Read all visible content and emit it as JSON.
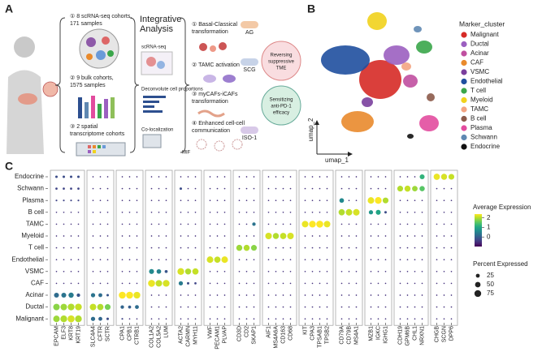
{
  "panel_labels": [
    "A",
    "B",
    "C"
  ],
  "panel_a": {
    "cohorts": [
      [
        "① 8 scRNA-seq cohorts,",
        "171 samples"
      ],
      [
        "② 9 bulk cohorts,",
        "1575 samples"
      ],
      [
        "③ 2 spatial",
        "transcriptome cohorts"
      ]
    ],
    "integrative_title": [
      "Integrative",
      "Analysis"
    ],
    "integrative_items": [
      "scRNA-seq",
      "Deconvolute cell proportions",
      "Co-localization"
    ],
    "findings": [
      [
        "① Basal-Classical",
        "transformation"
      ],
      [
        "② TAMC activation"
      ],
      [
        "③ myCAFs-iCAFs",
        "transformation"
      ],
      [
        "④ Enhanced cell-cell",
        "communication"
      ]
    ],
    "mif": "MIF",
    "drugs": [
      "AG",
      "SCG",
      "ISO-1"
    ],
    "outcomes": [
      [
        "Reversing",
        "suppressive",
        "TME"
      ],
      [
        "Sensitizing",
        "anti-PD-1",
        "efficacy"
      ]
    ]
  },
  "panel_b": {
    "legend_title": "Marker_cluster",
    "x_label": "umap_1",
    "y_label": "umap_2",
    "clusters": [
      {
        "name": "Malignant",
        "color": "#d62a26"
      },
      {
        "name": "Ductal",
        "color": "#9b5fc0"
      },
      {
        "name": "Acinar",
        "color": "#c04fa0"
      },
      {
        "name": "CAF",
        "color": "#e98a2c"
      },
      {
        "name": "VSMC",
        "color": "#7a3f9d"
      },
      {
        "name": "Endothelial",
        "color": "#1f4f9f"
      },
      {
        "name": "T cell",
        "color": "#3aa64a"
      },
      {
        "name": "Myeloid",
        "color": "#f1d21c"
      },
      {
        "name": "TAMC",
        "color": "#f3a482"
      },
      {
        "name": "B cell",
        "color": "#8c5a4a"
      },
      {
        "name": "Plasma",
        "color": "#e24c9e"
      },
      {
        "name": "Schwann",
        "color": "#5f88b2"
      },
      {
        "name": "Endocrine",
        "color": "#111111"
      }
    ]
  },
  "chart_data": {
    "type": "dotplot",
    "gene_groups": [
      [
        "EPCAM",
        "ELF3",
        "KRT8",
        "KRT19"
      ],
      [
        "SLC4A4",
        "CFTR",
        "SCTR"
      ],
      [
        "CPA1",
        "CPB1",
        "CTRB1"
      ],
      [
        "COL1A2",
        "COL5A2",
        "LUM"
      ],
      [
        "ACTA2",
        "CARMN",
        "MYH11"
      ],
      [
        "VWF",
        "PECAM1",
        "PLVAP"
      ],
      [
        "CD3D",
        "CD2",
        "SKAP1"
      ],
      [
        "AIF1",
        "MS4A6A",
        "CD163",
        "CD68"
      ],
      [
        "KIT",
        "CPA3",
        "TPSAB1",
        "TPSB2"
      ],
      [
        "CD79A",
        "CD79B",
        "MS4A1"
      ],
      [
        "MZB1",
        "IGKC",
        "IGHG1"
      ],
      [
        "CDH19",
        "GPM6B",
        "CHL1",
        "NRXN1"
      ],
      [
        "CHGB",
        "SCGN",
        "DPP6"
      ]
    ],
    "rows": [
      "Endocrine",
      "Schwann",
      "Plasma",
      "B cell",
      "TAMC",
      "Myeloid",
      "T cell",
      "Endothelial",
      "VSMC",
      "CAF",
      "Acinar",
      "Ductal",
      "Malignant"
    ],
    "expression": [
      [
        -0.2,
        -0.2,
        -0.2,
        -0.2,
        -0.5,
        -0.5,
        -0.5,
        -0.5,
        -0.5,
        -0.5,
        -0.5,
        -0.5,
        -0.5,
        -0.5,
        -0.5,
        -0.5,
        -0.5,
        -0.5,
        -0.5,
        -0.5,
        -0.5,
        -0.5,
        -0.5,
        -0.5,
        -0.5,
        -0.5,
        -0.5,
        -0.5,
        -0.5,
        -0.5,
        -0.5,
        -0.5,
        -0.5,
        -0.5,
        -0.5,
        -0.5,
        -0.5,
        -0.5,
        -0.5,
        1.2,
        2.3,
        2.2,
        2.1
      ],
      [
        -0.3,
        -0.3,
        -0.3,
        -0.3,
        -0.5,
        -0.5,
        -0.5,
        -0.5,
        -0.5,
        -0.5,
        -0.5,
        -0.5,
        -0.5,
        -0.2,
        -0.5,
        -0.5,
        -0.5,
        -0.5,
        -0.5,
        -0.5,
        -0.5,
        -0.5,
        -0.5,
        -0.5,
        -0.5,
        -0.5,
        -0.5,
        -0.5,
        -0.5,
        -0.5,
        -0.5,
        -0.5,
        -0.5,
        -0.5,
        -0.5,
        -0.5,
        2.0,
        2.1,
        1.9,
        1.5,
        -0.5,
        -0.5,
        -0.5
      ],
      [
        -0.3,
        -0.3,
        -0.3,
        -0.3,
        -0.5,
        -0.5,
        -0.5,
        -0.5,
        -0.5,
        -0.5,
        -0.5,
        -0.5,
        -0.5,
        -0.5,
        -0.5,
        -0.5,
        -0.5,
        -0.5,
        -0.5,
        -0.5,
        -0.5,
        -0.5,
        -0.5,
        -0.5,
        -0.5,
        -0.5,
        -0.5,
        -0.5,
        -0.5,
        -0.5,
        0.6,
        -0.5,
        -0.5,
        2.3,
        2.4,
        2.0,
        -0.5,
        -0.5,
        -0.5,
        -0.5,
        -0.5,
        -0.5,
        -0.5
      ],
      [
        -0.5,
        -0.5,
        -0.5,
        -0.5,
        -0.5,
        -0.5,
        -0.5,
        -0.5,
        -0.5,
        -0.5,
        -0.5,
        -0.5,
        -0.5,
        -0.5,
        -0.5,
        -0.5,
        -0.5,
        -0.5,
        -0.5,
        -0.5,
        -0.5,
        -0.5,
        -0.5,
        -0.5,
        -0.5,
        -0.5,
        -0.5,
        -0.5,
        -0.5,
        -0.5,
        2.0,
        2.1,
        2.2,
        0.8,
        1.0,
        -0.2,
        -0.5,
        -0.5,
        -0.5,
        -0.5,
        -0.5,
        -0.5,
        -0.5
      ],
      [
        -0.5,
        -0.5,
        -0.5,
        -0.5,
        -0.5,
        -0.5,
        -0.5,
        -0.5,
        -0.5,
        -0.5,
        -0.5,
        -0.5,
        -0.5,
        -0.5,
        -0.5,
        -0.5,
        -0.5,
        -0.5,
        -0.5,
        -0.5,
        -0.5,
        0.3,
        -0.5,
        -0.5,
        -0.5,
        -0.5,
        2.3,
        2.4,
        2.4,
        2.3,
        -0.5,
        -0.5,
        -0.5,
        -0.5,
        -0.5,
        -0.5,
        -0.5,
        -0.5,
        -0.5,
        -0.5,
        -0.5,
        -0.5,
        -0.5
      ],
      [
        -0.5,
        -0.5,
        -0.5,
        -0.5,
        -0.5,
        -0.5,
        -0.5,
        -0.5,
        -0.5,
        -0.5,
        -0.5,
        -0.5,
        -0.5,
        -0.5,
        -0.5,
        -0.5,
        -0.5,
        -0.5,
        -0.5,
        -0.5,
        -0.5,
        -0.5,
        2.2,
        2.0,
        2.1,
        2.2,
        -0.5,
        -0.5,
        -0.5,
        -0.5,
        -0.5,
        -0.5,
        -0.5,
        -0.5,
        -0.5,
        -0.5,
        -0.5,
        -0.5,
        -0.5,
        -0.5,
        -0.5,
        -0.5,
        -0.5
      ],
      [
        -0.5,
        -0.5,
        -0.5,
        -0.5,
        -0.5,
        -0.5,
        -0.5,
        -0.5,
        -0.5,
        -0.5,
        -0.5,
        -0.5,
        -0.5,
        -0.5,
        -0.5,
        -0.5,
        -0.5,
        -0.5,
        -0.5,
        1.9,
        2.0,
        1.8,
        -0.5,
        -0.5,
        -0.5,
        -0.5,
        -0.5,
        -0.5,
        -0.5,
        -0.5,
        -0.5,
        -0.5,
        -0.5,
        -0.5,
        -0.5,
        -0.5,
        -0.5,
        -0.5,
        -0.5,
        -0.5,
        -0.5,
        -0.5,
        -0.5
      ],
      [
        -0.5,
        -0.5,
        -0.5,
        -0.5,
        -0.5,
        -0.5,
        -0.5,
        -0.5,
        -0.5,
        -0.5,
        -0.5,
        -0.5,
        -0.5,
        -0.5,
        -0.5,
        -0.5,
        2.2,
        2.1,
        2.3,
        -0.5,
        -0.5,
        -0.5,
        -0.5,
        -0.5,
        -0.5,
        -0.5,
        -0.5,
        -0.5,
        -0.5,
        -0.5,
        -0.5,
        -0.5,
        -0.5,
        -0.5,
        -0.5,
        -0.5,
        -0.5,
        -0.5,
        -0.5,
        -0.5,
        -0.5,
        -0.5,
        -0.5
      ],
      [
        -0.5,
        -0.5,
        -0.5,
        -0.5,
        -0.5,
        -0.5,
        -0.5,
        -0.5,
        -0.5,
        -0.5,
        0.6,
        0.5,
        -0.1,
        2.2,
        2.0,
        2.1,
        -0.5,
        -0.5,
        -0.5,
        -0.5,
        -0.5,
        -0.5,
        -0.5,
        -0.5,
        -0.5,
        -0.5,
        -0.5,
        -0.5,
        -0.5,
        -0.5,
        -0.5,
        -0.5,
        -0.5,
        -0.5,
        -0.5,
        -0.5,
        -0.5,
        -0.5,
        -0.5,
        -0.5,
        -0.5,
        -0.5,
        -0.5
      ],
      [
        -0.5,
        -0.5,
        -0.5,
        -0.5,
        -0.5,
        -0.5,
        -0.5,
        -0.5,
        -0.5,
        -0.5,
        2.3,
        2.1,
        2.2,
        0.4,
        -0.2,
        -0.3,
        -0.5,
        -0.5,
        -0.5,
        -0.5,
        -0.5,
        -0.5,
        -0.5,
        -0.5,
        -0.5,
        -0.5,
        -0.5,
        -0.5,
        -0.5,
        -0.5,
        -0.5,
        -0.5,
        -0.5,
        -0.5,
        -0.5,
        -0.5,
        -0.5,
        -0.5,
        -0.5,
        -0.5,
        -0.5,
        -0.5,
        -0.5
      ],
      [
        0.2,
        0.3,
        0.4,
        -0.1,
        0.3,
        0.2,
        -0.1,
        2.4,
        2.4,
        2.3,
        -0.5,
        -0.5,
        -0.5,
        -0.5,
        -0.5,
        -0.5,
        -0.5,
        -0.5,
        -0.5,
        -0.5,
        -0.5,
        -0.5,
        -0.5,
        -0.5,
        -0.5,
        -0.5,
        -0.5,
        -0.5,
        -0.5,
        -0.5,
        -0.5,
        -0.5,
        -0.5,
        -0.5,
        -0.5,
        -0.5,
        -0.5,
        -0.5,
        -0.5,
        -0.5,
        -0.5,
        -0.5,
        -0.5
      ],
      [
        1.8,
        1.9,
        2.0,
        2.1,
        2.1,
        2.0,
        1.7,
        0.1,
        0.0,
        0.2,
        -0.5,
        -0.5,
        -0.5,
        -0.5,
        -0.5,
        -0.5,
        -0.5,
        -0.5,
        -0.5,
        -0.5,
        -0.5,
        -0.5,
        -0.5,
        -0.5,
        -0.5,
        -0.5,
        -0.5,
        -0.5,
        -0.5,
        -0.5,
        -0.5,
        -0.5,
        -0.5,
        -0.5,
        -0.5,
        -0.5,
        -0.5,
        -0.5,
        -0.5,
        -0.5,
        -0.5,
        -0.5,
        -0.5
      ],
      [
        1.9,
        2.0,
        2.2,
        2.0,
        0.2,
        0.1,
        -0.2,
        -0.3,
        -0.5,
        -0.5,
        -0.5,
        -0.5,
        -0.5,
        -0.5,
        -0.5,
        -0.5,
        -0.5,
        -0.5,
        -0.5,
        -0.5,
        -0.5,
        -0.5,
        -0.5,
        -0.5,
        -0.5,
        -0.5,
        -0.5,
        -0.5,
        -0.5,
        -0.5,
        -0.5,
        -0.5,
        -0.5,
        -0.5,
        -0.5,
        -0.5,
        -0.5,
        -0.5,
        -0.5,
        -0.5,
        -0.5,
        -0.5,
        -0.5
      ]
    ],
    "percent": [
      [
        10,
        10,
        10,
        10,
        3,
        3,
        3,
        3,
        3,
        3,
        3,
        3,
        3,
        3,
        3,
        3,
        3,
        3,
        3,
        3,
        3,
        3,
        3,
        3,
        3,
        3,
        3,
        3,
        3,
        3,
        3,
        3,
        3,
        3,
        3,
        3,
        3,
        3,
        3,
        40,
        65,
        60,
        55
      ],
      [
        8,
        8,
        8,
        8,
        3,
        3,
        3,
        3,
        3,
        3,
        3,
        3,
        3,
        10,
        3,
        3,
        3,
        3,
        3,
        3,
        3,
        3,
        3,
        3,
        3,
        3,
        3,
        3,
        3,
        3,
        3,
        3,
        3,
        3,
        3,
        3,
        55,
        60,
        50,
        45,
        3,
        3,
        3
      ],
      [
        5,
        5,
        5,
        5,
        3,
        3,
        3,
        3,
        3,
        3,
        3,
        3,
        3,
        3,
        3,
        3,
        3,
        3,
        3,
        3,
        3,
        3,
        3,
        3,
        3,
        3,
        3,
        3,
        3,
        3,
        35,
        3,
        3,
        70,
        75,
        55,
        3,
        3,
        3,
        3,
        3,
        3,
        3
      ],
      [
        3,
        3,
        3,
        3,
        3,
        3,
        3,
        3,
        3,
        3,
        3,
        3,
        3,
        3,
        3,
        3,
        3,
        3,
        3,
        3,
        3,
        3,
        3,
        3,
        3,
        3,
        3,
        3,
        3,
        3,
        65,
        70,
        70,
        30,
        40,
        10,
        3,
        3,
        3,
        3,
        3,
        3,
        3
      ],
      [
        3,
        3,
        3,
        3,
        3,
        3,
        3,
        3,
        3,
        3,
        3,
        3,
        3,
        3,
        3,
        3,
        3,
        3,
        3,
        3,
        3,
        20,
        3,
        3,
        3,
        3,
        70,
        75,
        80,
        70,
        3,
        3,
        3,
        3,
        3,
        3,
        3,
        3,
        3,
        3,
        3,
        3,
        3
      ],
      [
        3,
        3,
        3,
        3,
        3,
        3,
        3,
        3,
        3,
        3,
        3,
        3,
        3,
        3,
        3,
        3,
        3,
        3,
        3,
        3,
        3,
        3,
        70,
        60,
        65,
        70,
        3,
        3,
        3,
        3,
        3,
        3,
        3,
        3,
        3,
        3,
        3,
        3,
        3,
        3,
        3,
        3,
        3
      ],
      [
        3,
        3,
        3,
        3,
        3,
        3,
        3,
        3,
        3,
        3,
        3,
        3,
        3,
        3,
        3,
        3,
        3,
        3,
        3,
        60,
        60,
        55,
        3,
        3,
        3,
        3,
        3,
        3,
        3,
        3,
        3,
        3,
        3,
        3,
        3,
        3,
        3,
        3,
        3,
        3,
        3,
        3,
        3
      ],
      [
        3,
        3,
        3,
        3,
        3,
        3,
        3,
        3,
        3,
        3,
        3,
        3,
        3,
        3,
        3,
        3,
        70,
        65,
        70,
        3,
        3,
        3,
        3,
        3,
        3,
        3,
        3,
        3,
        3,
        3,
        3,
        3,
        3,
        3,
        3,
        3,
        3,
        3,
        3,
        3,
        3,
        3,
        3
      ],
      [
        3,
        3,
        3,
        3,
        3,
        3,
        3,
        3,
        3,
        3,
        40,
        35,
        15,
        75,
        60,
        65,
        3,
        3,
        3,
        3,
        3,
        3,
        3,
        3,
        3,
        3,
        3,
        3,
        3,
        3,
        3,
        3,
        3,
        3,
        3,
        3,
        3,
        3,
        3,
        3,
        3,
        3,
        3
      ],
      [
        3,
        3,
        3,
        3,
        3,
        3,
        3,
        3,
        3,
        3,
        80,
        70,
        75,
        30,
        10,
        8,
        3,
        3,
        3,
        3,
        3,
        3,
        3,
        3,
        3,
        3,
        3,
        3,
        3,
        3,
        3,
        3,
        3,
        3,
        3,
        3,
        3,
        3,
        3,
        3,
        3,
        3,
        3
      ],
      [
        40,
        40,
        45,
        20,
        30,
        25,
        10,
        80,
        80,
        75,
        3,
        3,
        3,
        3,
        3,
        3,
        3,
        3,
        3,
        3,
        3,
        3,
        3,
        3,
        3,
        3,
        3,
        3,
        3,
        3,
        3,
        3,
        3,
        3,
        3,
        3,
        3,
        3,
        3,
        3,
        3,
        3,
        3
      ],
      [
        70,
        70,
        75,
        75,
        70,
        65,
        55,
        20,
        15,
        25,
        3,
        3,
        3,
        3,
        3,
        3,
        3,
        3,
        3,
        3,
        3,
        3,
        3,
        3,
        3,
        3,
        3,
        3,
        3,
        3,
        3,
        3,
        3,
        3,
        3,
        3,
        3,
        3,
        3,
        3,
        3,
        3,
        3
      ],
      [
        70,
        75,
        80,
        75,
        30,
        25,
        10,
        5,
        3,
        3,
        3,
        3,
        3,
        3,
        3,
        3,
        3,
        3,
        3,
        3,
        3,
        3,
        3,
        3,
        3,
        3,
        3,
        3,
        3,
        3,
        3,
        3,
        3,
        3,
        3,
        3,
        3,
        3,
        3,
        3,
        3,
        3,
        3
      ]
    ],
    "color_legend_title": "Average Expression",
    "clim": [
      -1,
      2.4
    ],
    "cticks": [
      0,
      1,
      2
    ],
    "size_legend_title": "Percent Expressed",
    "size_ticks": [
      25,
      50,
      75
    ]
  }
}
